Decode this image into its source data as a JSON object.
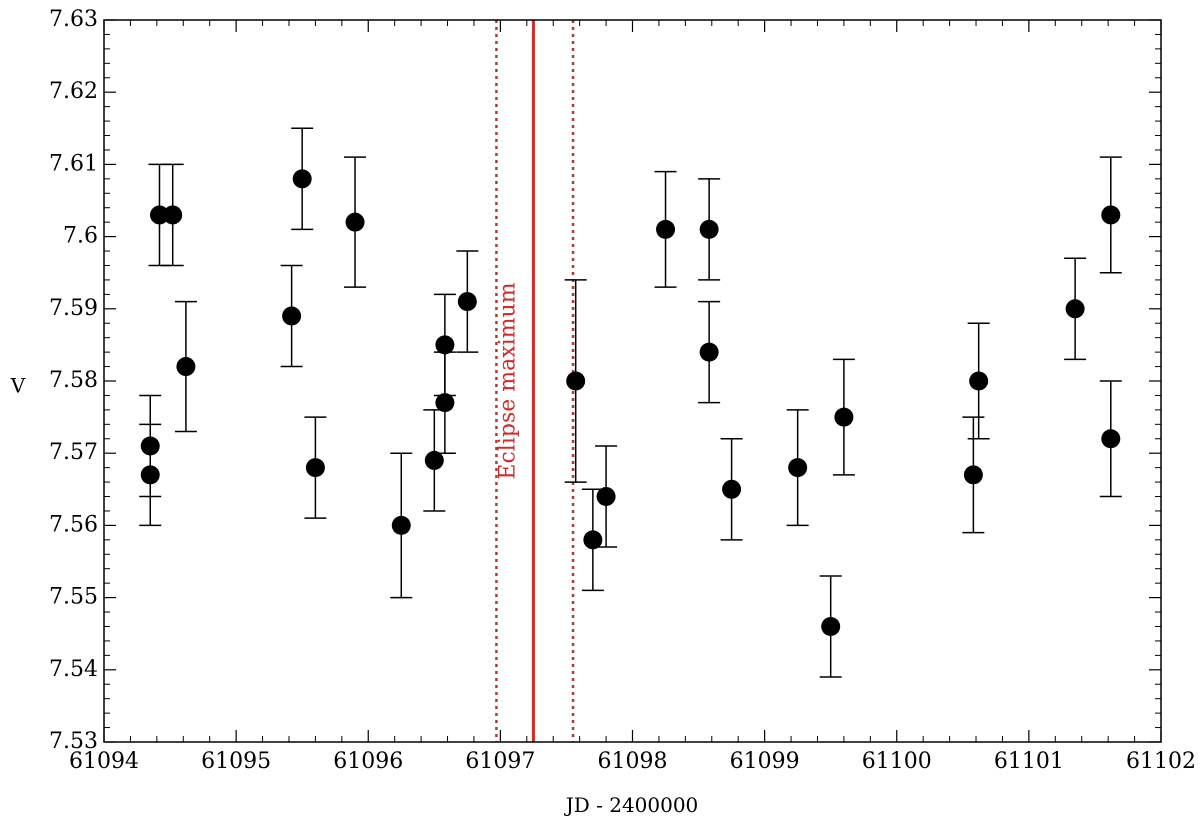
{
  "chart_data": {
    "type": "scatter",
    "xlabel": "JD - 2400000",
    "ylabel": "V",
    "xlim": [
      61094,
      61102
    ],
    "ylim": [
      7.53,
      7.63
    ],
    "x_ticks": [
      61094,
      61095,
      61096,
      61097,
      61098,
      61099,
      61100,
      61101,
      61102
    ],
    "x_tick_labels": [
      "61094",
      "61095",
      "61096",
      "61097",
      "61098",
      "61099",
      "61100",
      "61101",
      "61102"
    ],
    "y_ticks": [
      7.53,
      7.54,
      7.55,
      7.56,
      7.57,
      7.58,
      7.59,
      7.6,
      7.61,
      7.62,
      7.63
    ],
    "y_tick_labels": [
      "7.53",
      "7.54",
      "7.55",
      "7.56",
      "7.57",
      "7.58",
      "7.59",
      "7.6",
      "7.61",
      "7.62",
      "7.63"
    ],
    "x_minor_per_major": 5,
    "y_minor_per_major": 5,
    "grid": false,
    "marker": "filled-circle",
    "marker_color": "#000000",
    "points": [
      {
        "x": 61094.35,
        "y": 7.571,
        "err": 0.007
      },
      {
        "x": 61094.35,
        "y": 7.567,
        "err": 0.007
      },
      {
        "x": 61094.42,
        "y": 7.603,
        "err": 0.007
      },
      {
        "x": 61094.52,
        "y": 7.603,
        "err": 0.007
      },
      {
        "x": 61094.62,
        "y": 7.582,
        "err": 0.009
      },
      {
        "x": 61095.42,
        "y": 7.589,
        "err": 0.007
      },
      {
        "x": 61095.5,
        "y": 7.608,
        "err": 0.007
      },
      {
        "x": 61095.6,
        "y": 7.568,
        "err": 0.007
      },
      {
        "x": 61095.9,
        "y": 7.602,
        "err": 0.009
      },
      {
        "x": 61096.25,
        "y": 7.56,
        "err": 0.01
      },
      {
        "x": 61096.5,
        "y": 7.569,
        "err": 0.007
      },
      {
        "x": 61096.58,
        "y": 7.585,
        "err": 0.007
      },
      {
        "x": 61096.58,
        "y": 7.577,
        "err": 0.007
      },
      {
        "x": 61096.75,
        "y": 7.591,
        "err": 0.007
      },
      {
        "x": 61097.57,
        "y": 7.58,
        "err": 0.014
      },
      {
        "x": 61097.7,
        "y": 7.558,
        "err": 0.007
      },
      {
        "x": 61097.8,
        "y": 7.564,
        "err": 0.007
      },
      {
        "x": 61098.25,
        "y": 7.601,
        "err": 0.008
      },
      {
        "x": 61098.58,
        "y": 7.601,
        "err": 0.007
      },
      {
        "x": 61098.58,
        "y": 7.584,
        "err": 0.007
      },
      {
        "x": 61098.75,
        "y": 7.565,
        "err": 0.007
      },
      {
        "x": 61099.25,
        "y": 7.568,
        "err": 0.008
      },
      {
        "x": 61099.5,
        "y": 7.546,
        "err": 0.007
      },
      {
        "x": 61099.6,
        "y": 7.575,
        "err": 0.008
      },
      {
        "x": 61100.58,
        "y": 7.567,
        "err": 0.008
      },
      {
        "x": 61100.62,
        "y": 7.58,
        "err": 0.008
      },
      {
        "x": 61101.35,
        "y": 7.59,
        "err": 0.007
      },
      {
        "x": 61101.62,
        "y": 7.603,
        "err": 0.008
      },
      {
        "x": 61101.62,
        "y": 7.572,
        "err": 0.008
      }
    ],
    "vlines": [
      {
        "x": 61097.25,
        "style": "solid",
        "color": "#d22a2a"
      },
      {
        "x": 61096.97,
        "style": "dotted",
        "color": "#b03a3a"
      },
      {
        "x": 61097.55,
        "style": "dotted",
        "color": "#b03a3a"
      }
    ],
    "annotation": {
      "text": "Eclipse maximum",
      "x": 61097.06,
      "y": 7.58,
      "rotation": -90,
      "color": "#d22a2a"
    }
  }
}
